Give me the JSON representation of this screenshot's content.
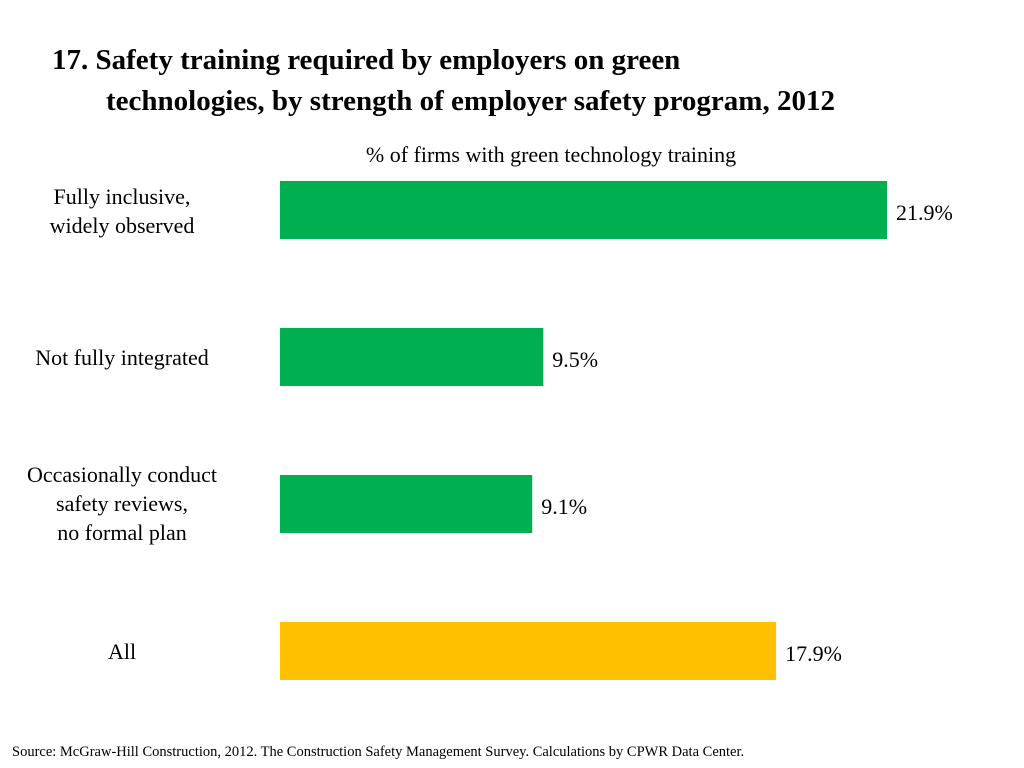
{
  "title": {
    "line1": "17. Safety training required by employers on green",
    "line2": "technologies, by strength of employer safety program, 2012"
  },
  "chart_data": {
    "type": "bar",
    "orientation": "horizontal",
    "title": "17. Safety training required by employers on green technologies, by strength of employer safety program, 2012",
    "subtitle": "% of firms with green technology training",
    "xlabel": "",
    "ylabel": "",
    "xlim": [
      0,
      22
    ],
    "grid": false,
    "legend": "none",
    "categories": [
      [
        "Fully inclusive,",
        "widely observed"
      ],
      [
        "Not fully integrated"
      ],
      [
        "Occasionally conduct",
        "safety reviews,",
        "no formal plan"
      ],
      [
        "All"
      ]
    ],
    "values": [
      21.9,
      9.5,
      9.1,
      17.9
    ],
    "value_labels": [
      "21.9%",
      "9.5%",
      "9.1%",
      "17.9%"
    ],
    "bar_colors": [
      "#00B050",
      "#00B050",
      "#00B050",
      "#FFC000"
    ]
  },
  "footer": {
    "source": "Source:  McGraw-Hill Construction, 2012. The Construction Safety Management Survey. Calculations by CPWR Data Center."
  }
}
